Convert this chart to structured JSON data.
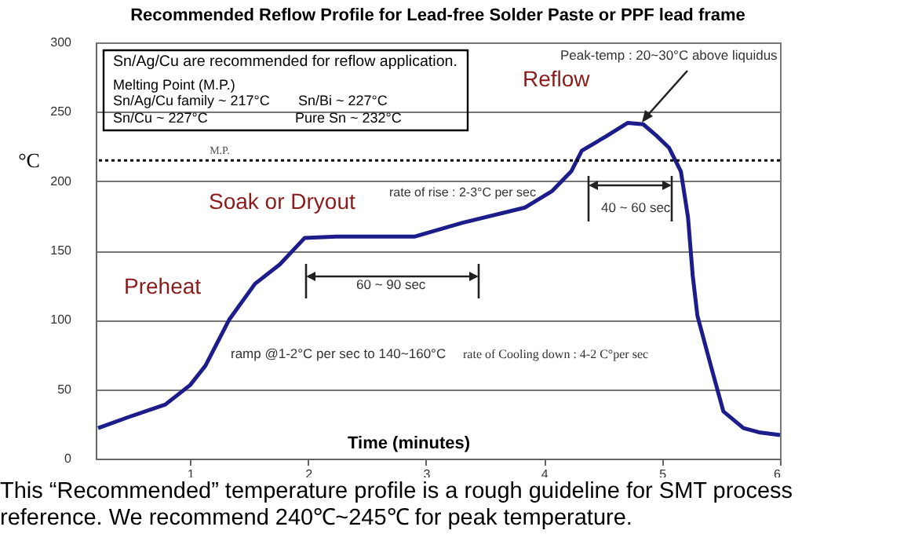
{
  "chart_data": {
    "type": "line",
    "title": "Recommended Reflow Profile for Lead-free Solder Paste or PPF lead frame",
    "xlabel": "Time (minutes)",
    "ylabel": "°C",
    "xlim": [
      0.2,
      6
    ],
    "xticks": [
      1,
      2,
      3,
      4,
      5,
      6
    ],
    "ylim": [
      0,
      300
    ],
    "yticks": [
      0,
      50,
      100,
      150,
      200,
      250,
      300
    ],
    "grid": "y",
    "line_style": "solid",
    "series": [
      {
        "color": "#1c1c8a",
        "x": [
          0.22,
          0.48,
          0.79,
          1.0,
          1.13,
          1.33,
          1.55,
          1.76,
          1.97,
          2.24,
          2.9,
          3.31,
          3.84,
          4.07,
          4.23,
          4.32,
          4.52,
          4.71,
          4.84,
          4.95,
          5.06,
          5.16,
          5.22,
          5.26,
          5.3,
          5.42,
          5.52,
          5.69,
          5.82,
          6.0
        ],
        "values": [
          22,
          30,
          39,
          53,
          67,
          100,
          126,
          140,
          159,
          160,
          160,
          170,
          181,
          193,
          207,
          222,
          232,
          242,
          241,
          233,
          224,
          207,
          174,
          132,
          103,
          65,
          34,
          22,
          19,
          17
        ]
      }
    ],
    "ref_lines": [
      {
        "axis": "y",
        "value": 215,
        "label": "M.P.",
        "line_style": "dotted",
        "color": "#000000"
      }
    ],
    "annotations": [
      "Sn/Ag/Cu are recommended for reflow application.",
      "Melting Point (M.P.)",
      "Sn/Ag/Cu family ~  217°C",
      "Sn/Bi ~ 227°C",
      "Sn/Cu ~ 227°C",
      "Pure Sn ~ 232°C",
      "Peak-temp : 20~30°C above liquidus",
      "Reflow",
      "Soak or Dryout",
      "rate of rise : 2-3°C per sec",
      "40 ~ 60 sec",
      "60 ~ 90 sec",
      "Preheat",
      "ramp @1-2°C per sec to 140~160°C",
      "rate of Cooling down : 4-2  C°per sec",
      "This “Recommended” temperature profile is a rough guideline for SMT process reference. We recommend 240℃~245℃ for peak temperature."
    ]
  }
}
